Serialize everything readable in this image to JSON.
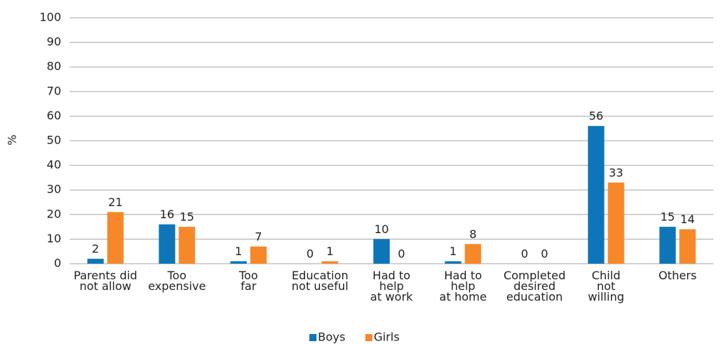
{
  "chart_data": {
    "type": "bar",
    "y_label": "%",
    "categories": [
      [
        "Parents did",
        "not allow"
      ],
      [
        "Too",
        "expensive"
      ],
      [
        "Too",
        "far"
      ],
      [
        "Education",
        "not useful"
      ],
      [
        "Had to",
        "help",
        "at work"
      ],
      [
        "Had to",
        "help",
        "at home"
      ],
      [
        "Completed",
        "desired",
        "education"
      ],
      [
        "Child",
        "not",
        "willing"
      ],
      [
        "Others"
      ]
    ],
    "series": [
      {
        "name": "Boys",
        "color": "#0e76b8",
        "values": [
          2,
          16,
          1,
          0,
          10,
          1,
          0,
          56,
          15
        ]
      },
      {
        "name": "Girls",
        "color": "#f6882a",
        "values": [
          21,
          15,
          7,
          1,
          0,
          8,
          0,
          33,
          14
        ]
      }
    ],
    "ylim": [
      0,
      100
    ],
    "yticks": [
      0,
      10,
      20,
      30,
      40,
      50,
      60,
      70,
      80,
      90,
      100
    ],
    "grid": true,
    "legend": "bottom"
  }
}
